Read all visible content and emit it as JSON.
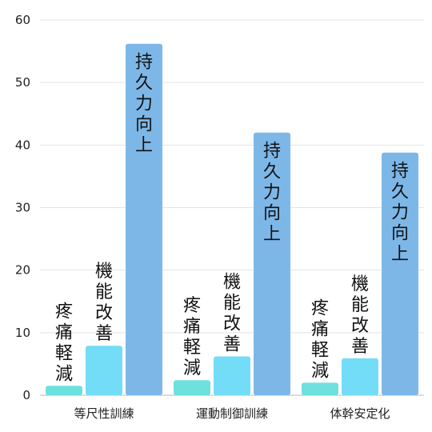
{
  "chart_data": {
    "type": "bar",
    "categories": [
      "等尺性訓練",
      "運動制御訓練",
      "体幹安定化"
    ],
    "series": [
      {
        "name": "疼痛軽減",
        "color": "#6ee0dd",
        "values": [
          1.5,
          2.4,
          2.0
        ]
      },
      {
        "name": "機能改善",
        "color": "#73dcf7",
        "values": [
          7.9,
          6.2,
          5.9
        ]
      },
      {
        "name": "持久力向上",
        "color": "#7db7e8",
        "values": [
          56.2,
          42.0,
          38.8
        ]
      }
    ],
    "yticks": [
      0,
      10,
      20,
      30,
      40,
      50,
      60
    ],
    "ylim": [
      0,
      60
    ],
    "grid": true,
    "bar_labels_inside_top": [
      false,
      false,
      true
    ]
  }
}
